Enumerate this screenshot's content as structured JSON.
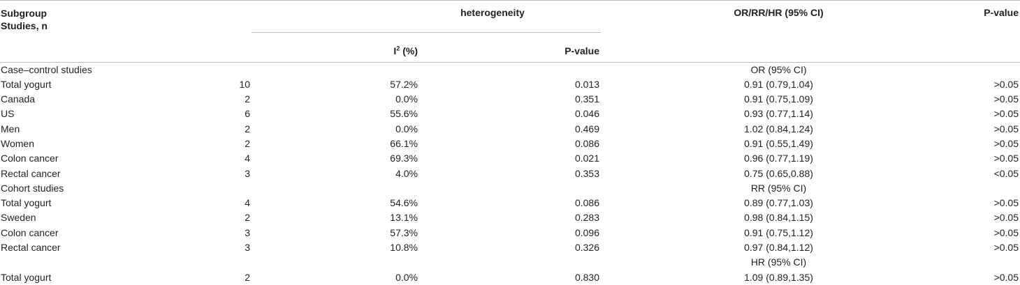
{
  "header": {
    "subgroup": "Subgroup",
    "studies": "Studies, n",
    "heterogeneity": "heterogeneity",
    "i2_label_main": "I",
    "i2_label_sup": "2",
    "i2_label_rest": " (%)",
    "het_pvalue": "P-value",
    "ci": "OR/RR/HR (95% CI)",
    "pvalue": "P-value"
  },
  "rows": [
    {
      "type": "section",
      "label": "Case–control studies",
      "ci": "OR (95% CI)"
    },
    {
      "type": "data",
      "label": "Total yogurt",
      "n": "10",
      "i2": "57.2%",
      "p_het": "0.013",
      "ci": "0.91 (0.79,1.04)",
      "p": ">0.05"
    },
    {
      "type": "data",
      "label": "Canada",
      "n": "2",
      "i2": "0.0%",
      "p_het": "0.351",
      "ci": "0.91 (0.75,1.09)",
      "p": ">0.05"
    },
    {
      "type": "data",
      "label": "US",
      "n": "6",
      "i2": "55.6%",
      "p_het": "0.046",
      "ci": "0.93 (0.77,1.14)",
      "p": ">0.05"
    },
    {
      "type": "data",
      "label": "Men",
      "n": "2",
      "i2": "0.0%",
      "p_het": "0.469",
      "ci": "1.02 (0.84,1.24)",
      "p": ">0.05"
    },
    {
      "type": "data",
      "label": "Women",
      "n": "2",
      "i2": "66.1%",
      "p_het": "0.086",
      "ci": "0.91 (0.55,1.49)",
      "p": ">0.05"
    },
    {
      "type": "data",
      "label": "Colon cancer",
      "n": "4",
      "i2": "69.3%",
      "p_het": "0.021",
      "ci": "0.96 (0.77,1.19)",
      "p": ">0.05"
    },
    {
      "type": "data",
      "label": "Rectal cancer",
      "n": "3",
      "i2": "4.0%",
      "p_het": "0.353",
      "ci": "0.75 (0.65,0.88)",
      "p": "<0.05"
    },
    {
      "type": "section",
      "label": "Cohort studies",
      "ci": "RR (95% CI)"
    },
    {
      "type": "data",
      "label": "Total yogurt",
      "n": "4",
      "i2": "54.6%",
      "p_het": "0.086",
      "ci": "0.89 (0.77,1.03)",
      "p": ">0.05"
    },
    {
      "type": "data",
      "label": "Sweden",
      "n": "2",
      "i2": "13.1%",
      "p_het": "0.283",
      "ci": "0.98 (0.84,1.15)",
      "p": ">0.05"
    },
    {
      "type": "data",
      "label": "Colon cancer",
      "n": "3",
      "i2": "57.3%",
      "p_het": "0.096",
      "ci": "0.91 (0.75,1.12)",
      "p": ">0.05"
    },
    {
      "type": "data",
      "label": "Rectal cancer",
      "n": "3",
      "i2": "10.8%",
      "p_het": "0.326",
      "ci": "0.97 (0.84,1.12)",
      "p": ">0.05"
    },
    {
      "type": "section",
      "label": "",
      "ci": "HR (95% CI)"
    },
    {
      "type": "data",
      "label": "Total yogurt",
      "n": "2",
      "i2": "0.0%",
      "p_het": "0.830",
      "ci": "1.09 (0.89,1.35)",
      "p": ">0.05"
    }
  ]
}
